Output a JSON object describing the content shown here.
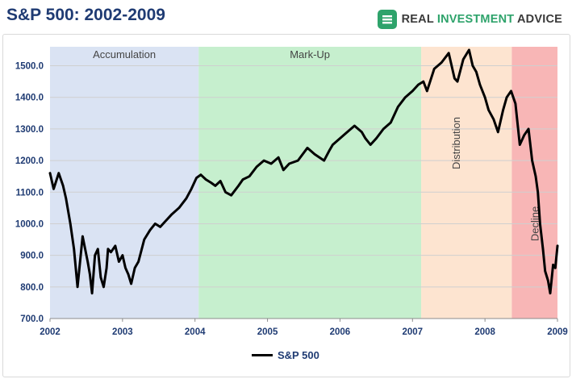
{
  "header": {
    "title": "S&P 500: 2002-2009",
    "brand_main": "REAL ",
    "brand_accent": "INVESTMENT",
    "brand_tail": " ADVICE"
  },
  "colors": {
    "title": "#1f3b73",
    "accumulation": "#dae3f3",
    "markup": "#c6efce",
    "distribution": "#fde4d0",
    "decline": "#f8b6b6",
    "line": "#000000",
    "brand_accent": "#2ea36b"
  },
  "chart_data": {
    "type": "line",
    "title": "S&P 500: 2002-2009",
    "xlabel": "",
    "ylabel": "",
    "xlim": [
      2002.0,
      2009.0
    ],
    "ylim": [
      700,
      1560
    ],
    "grid": true,
    "legend_position": "bottom",
    "x_ticks": [
      "2002",
      "2003",
      "2004",
      "2005",
      "2006",
      "2007",
      "2008",
      "2009"
    ],
    "y_ticks": [
      "700.0",
      "800.0",
      "900.0",
      "1000.0",
      "1100.0",
      "1200.0",
      "1300.0",
      "1400.0",
      "1500.0"
    ],
    "phases": [
      {
        "label": "Accumulation",
        "start": 2002.0,
        "end": 2004.05,
        "color": "#dae3f3"
      },
      {
        "label": "Mark-Up",
        "start": 2004.05,
        "end": 2007.12,
        "color": "#c6efce"
      },
      {
        "label": "Distribution",
        "start": 2007.12,
        "end": 2008.37,
        "color": "#fde4d0"
      },
      {
        "label": "Decline",
        "start": 2008.37,
        "end": 2009.0,
        "color": "#f8b6b6"
      }
    ],
    "series": [
      {
        "name": "S&P 500",
        "x": [
          2002.0,
          2002.05,
          2002.12,
          2002.18,
          2002.22,
          2002.28,
          2002.33,
          2002.38,
          2002.45,
          2002.52,
          2002.55,
          2002.58,
          2002.62,
          2002.66,
          2002.7,
          2002.74,
          2002.78,
          2002.8,
          2002.84,
          2002.9,
          2002.95,
          2003.0,
          2003.04,
          2003.08,
          2003.12,
          2003.17,
          2003.22,
          2003.3,
          2003.38,
          2003.45,
          2003.52,
          2003.6,
          2003.68,
          2003.78,
          2003.88,
          2003.95,
          2004.02,
          2004.08,
          2004.15,
          2004.22,
          2004.28,
          2004.35,
          2004.42,
          2004.5,
          2004.6,
          2004.66,
          2004.75,
          2004.85,
          2004.95,
          2005.05,
          2005.15,
          2005.22,
          2005.3,
          2005.42,
          2005.55,
          2005.65,
          2005.78,
          2005.85,
          2005.9,
          2006.0,
          2006.1,
          2006.2,
          2006.3,
          2006.35,
          2006.42,
          2006.5,
          2006.6,
          2006.7,
          2006.8,
          2006.9,
          2007.0,
          2007.08,
          2007.15,
          2007.2,
          2007.3,
          2007.4,
          2007.5,
          2007.58,
          2007.62,
          2007.7,
          2007.78,
          2007.83,
          2007.88,
          2007.93,
          2008.0,
          2008.05,
          2008.12,
          2008.18,
          2008.25,
          2008.3,
          2008.36,
          2008.42,
          2008.48,
          2008.54,
          2008.6,
          2008.65,
          2008.7,
          2008.73,
          2008.76,
          2008.8,
          2008.83,
          2008.87,
          2008.9,
          2008.94,
          2008.97,
          2009.0
        ],
        "values": [
          1160,
          1110,
          1160,
          1120,
          1080,
          1000,
          920,
          800,
          960,
          880,
          840,
          780,
          900,
          920,
          830,
          800,
          860,
          920,
          910,
          930,
          880,
          900,
          860,
          840,
          810,
          860,
          880,
          950,
          980,
          1000,
          990,
          1010,
          1030,
          1050,
          1080,
          1110,
          1145,
          1155,
          1140,
          1130,
          1120,
          1135,
          1100,
          1090,
          1120,
          1140,
          1150,
          1180,
          1200,
          1190,
          1210,
          1170,
          1190,
          1200,
          1240,
          1220,
          1200,
          1230,
          1250,
          1270,
          1290,
          1310,
          1290,
          1270,
          1250,
          1270,
          1300,
          1320,
          1370,
          1400,
          1420,
          1440,
          1450,
          1420,
          1490,
          1510,
          1540,
          1460,
          1450,
          1520,
          1550,
          1500,
          1480,
          1440,
          1400,
          1360,
          1330,
          1290,
          1360,
          1400,
          1420,
          1380,
          1250,
          1280,
          1300,
          1200,
          1150,
          1100,
          1000,
          920,
          850,
          820,
          780,
          870,
          860,
          930
        ]
      }
    ]
  },
  "legend": {
    "label": "S&P 500"
  }
}
